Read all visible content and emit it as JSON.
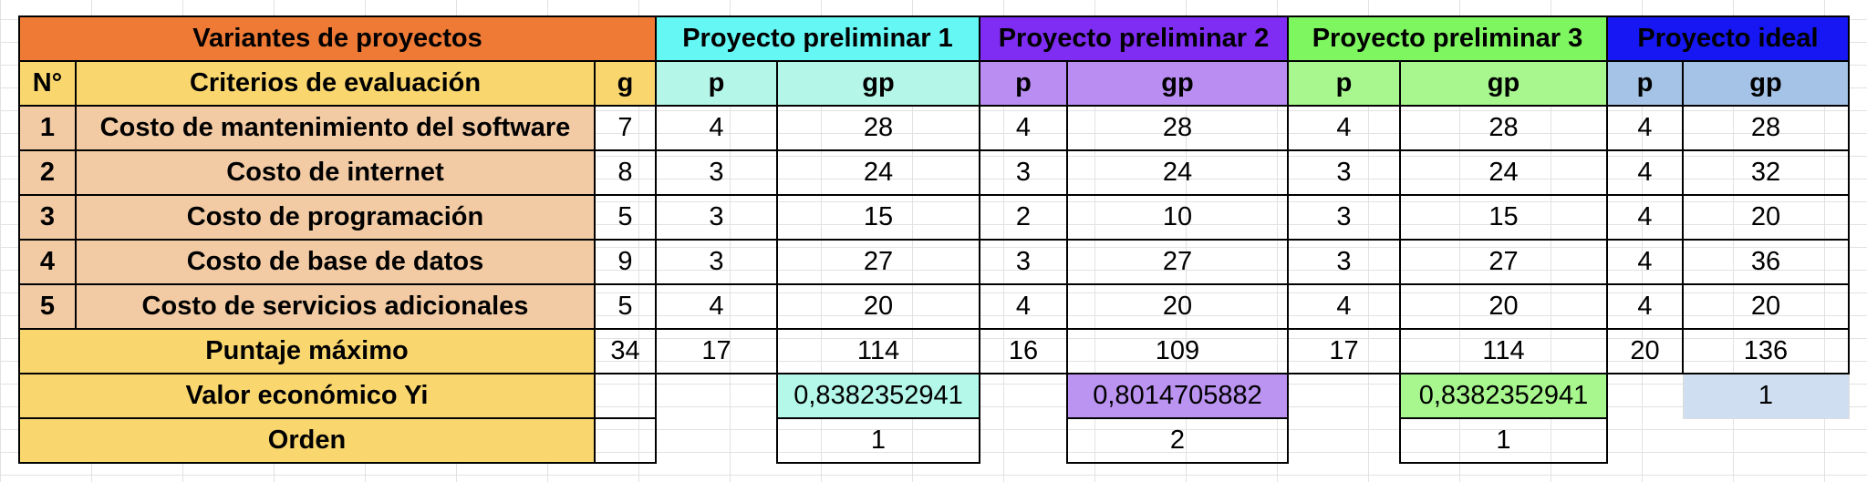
{
  "header": {
    "variantes": "Variantes de proyectos",
    "p1": "Proyecto preliminar 1",
    "p2": "Proyecto preliminar 2",
    "p3": "Proyecto preliminar 3",
    "ideal": "Proyecto ideal"
  },
  "subheader": {
    "num": "N°",
    "criterios": "Criterios de evaluación",
    "g": "g",
    "p": "p",
    "gp": "gp"
  },
  "rows": [
    {
      "n": "1",
      "crit": "Costo de mantenimiento del software",
      "g": "7",
      "p1": "4",
      "gp1": "28",
      "p2": "4",
      "gp2": "28",
      "p3": "4",
      "gp3": "28",
      "pi": "4",
      "gpi": "28"
    },
    {
      "n": "2",
      "crit": "Costo de internet",
      "g": "8",
      "p1": "3",
      "gp1": "24",
      "p2": "3",
      "gp2": "24",
      "p3": "3",
      "gp3": "24",
      "pi": "4",
      "gpi": "32"
    },
    {
      "n": "3",
      "crit": "Costo de programación",
      "g": "5",
      "p1": "3",
      "gp1": "15",
      "p2": "2",
      "gp2": "10",
      "p3": "3",
      "gp3": "15",
      "pi": "4",
      "gpi": "20"
    },
    {
      "n": "4",
      "crit": "Costo de base de datos",
      "g": "9",
      "p1": "3",
      "gp1": "27",
      "p2": "3",
      "gp2": "27",
      "p3": "3",
      "gp3": "27",
      "pi": "4",
      "gpi": "36"
    },
    {
      "n": "5",
      "crit": "Costo de servicios adicionales",
      "g": "5",
      "p1": "4",
      "gp1": "20",
      "p2": "4",
      "gp2": "20",
      "p3": "4",
      "gp3": "20",
      "pi": "4",
      "gpi": "20"
    }
  ],
  "puntaje": {
    "label": "Puntaje máximo",
    "g": "34",
    "p1": "17",
    "gp1": "114",
    "p2": "16",
    "gp2": "109",
    "p3": "17",
    "gp3": "114",
    "pi": "20",
    "gpi": "136"
  },
  "valor": {
    "label": "Valor económico Yi",
    "y1": "0,8382352941",
    "y2": "0,8014705882",
    "y3": "0,8382352941",
    "yi": "1"
  },
  "orden": {
    "label": "Orden",
    "o1": "1",
    "o2": "2",
    "o3": "1"
  }
}
